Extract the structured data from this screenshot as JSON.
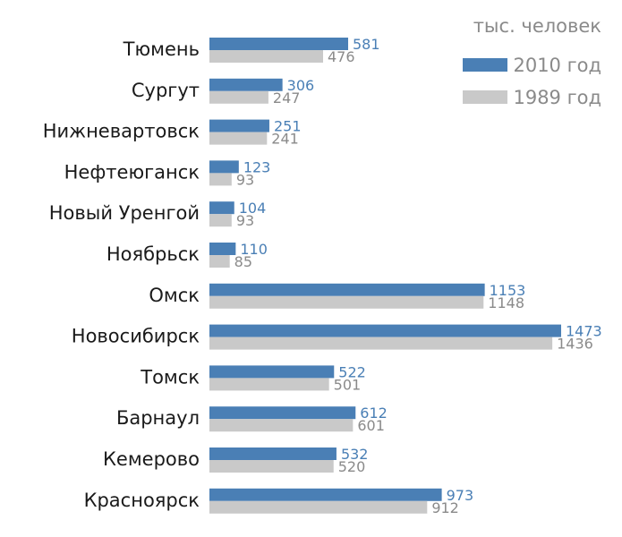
{
  "chart_data": {
    "type": "bar",
    "orientation": "horizontal",
    "unit": "тыс. человек",
    "categories": [
      "Тюмень",
      "Сургут",
      "Нижневартовск",
      "Нефтеюганск",
      "Новый Уренгой",
      "Ноябрьск",
      "Омск",
      "Новосибирск",
      "Томск",
      "Барнаул",
      "Кемерово",
      "Красноярск"
    ],
    "series": [
      {
        "name": "2010 год",
        "color": "#4a7fb5",
        "values": [
          581,
          306,
          251,
          123,
          104,
          110,
          1153,
          1473,
          522,
          612,
          532,
          973
        ]
      },
      {
        "name": "1989 год",
        "color": "#c9c9c9",
        "values": [
          476,
          247,
          241,
          93,
          93,
          85,
          1148,
          1436,
          501,
          601,
          520,
          912
        ]
      }
    ],
    "xlim": [
      0,
      1473
    ],
    "grid": false,
    "legend": "top-right"
  }
}
